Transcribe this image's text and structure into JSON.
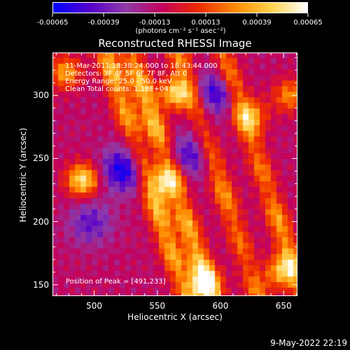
{
  "colorbar": {
    "ticks": [
      "-0.00065",
      "-0.00039",
      "-0.00013",
      "0.00013",
      "0.00039",
      "0.00065"
    ],
    "units": "(photons cm⁻² s⁻¹ asec⁻²)",
    "colormap": [
      "#0000ff",
      "#5500cc",
      "#8f3aa8",
      "#c4005c",
      "#ee2a00",
      "#ff8a00",
      "#ffd24d",
      "#ffffff"
    ]
  },
  "annotations": {
    "time": "11-Mar-2011 18:38:24.000 to 18:43:44.000",
    "detectors": "Detectors: 3F 4F 5F 6F 7F 8F, Att 0",
    "energy": "Energy Range: 25.0 - 50.0 keV",
    "method": "Clean     Total counts: 1.18E+04",
    "peak": "Position of Peak = [491,233]"
  },
  "footer": "9-May-2022 22:19",
  "chart_data": {
    "type": "heatmap",
    "title": "Reconstructed RHESSI Image",
    "xlabel": "Heliocentric X (arcsec)",
    "ylabel": "Heliocentric Y (arcsec)",
    "xlim": [
      467,
      661
    ],
    "ylim": [
      141,
      334
    ],
    "xticks": [
      500,
      550,
      600,
      650
    ],
    "yticks": [
      150,
      200,
      250,
      300
    ],
    "zlim": [
      -0.00065,
      0.00065
    ],
    "peak": [
      491,
      233
    ],
    "stripes": [
      {
        "x0": 540,
        "dxdy": -0.33,
        "amplitude": 0.00055
      },
      {
        "x0": 560,
        "dxdy": -0.33,
        "amplitude": 0.0006
      },
      {
        "x0": 597,
        "dxdy": -0.33,
        "amplitude": 0.00045
      },
      {
        "x0": 633,
        "dxdy": -0.33,
        "amplitude": 0.0005
      }
    ],
    "blobs": [
      {
        "x": 491,
        "y": 233,
        "amplitude": 0.00065
      },
      {
        "x": 477,
        "y": 318,
        "amplitude": 0.00045
      },
      {
        "x": 565,
        "y": 302,
        "amplitude": 0.0006
      },
      {
        "x": 556,
        "y": 230,
        "amplitude": 0.00045
      },
      {
        "x": 587,
        "y": 150,
        "amplitude": 0.0006
      },
      {
        "x": 648,
        "y": 160,
        "amplitude": 0.0005
      },
      {
        "x": 655,
        "y": 300,
        "amplitude": 0.0004
      },
      {
        "x": 625,
        "y": 285,
        "amplitude": 0.00035
      }
    ],
    "troughs": [
      {
        "x": 523,
        "y": 241,
        "amplitude": -0.0005
      },
      {
        "x": 597,
        "y": 302,
        "amplitude": -0.0004
      },
      {
        "x": 577,
        "y": 253,
        "amplitude": -0.00035
      },
      {
        "x": 497,
        "y": 199,
        "amplitude": -0.0003
      }
    ]
  }
}
